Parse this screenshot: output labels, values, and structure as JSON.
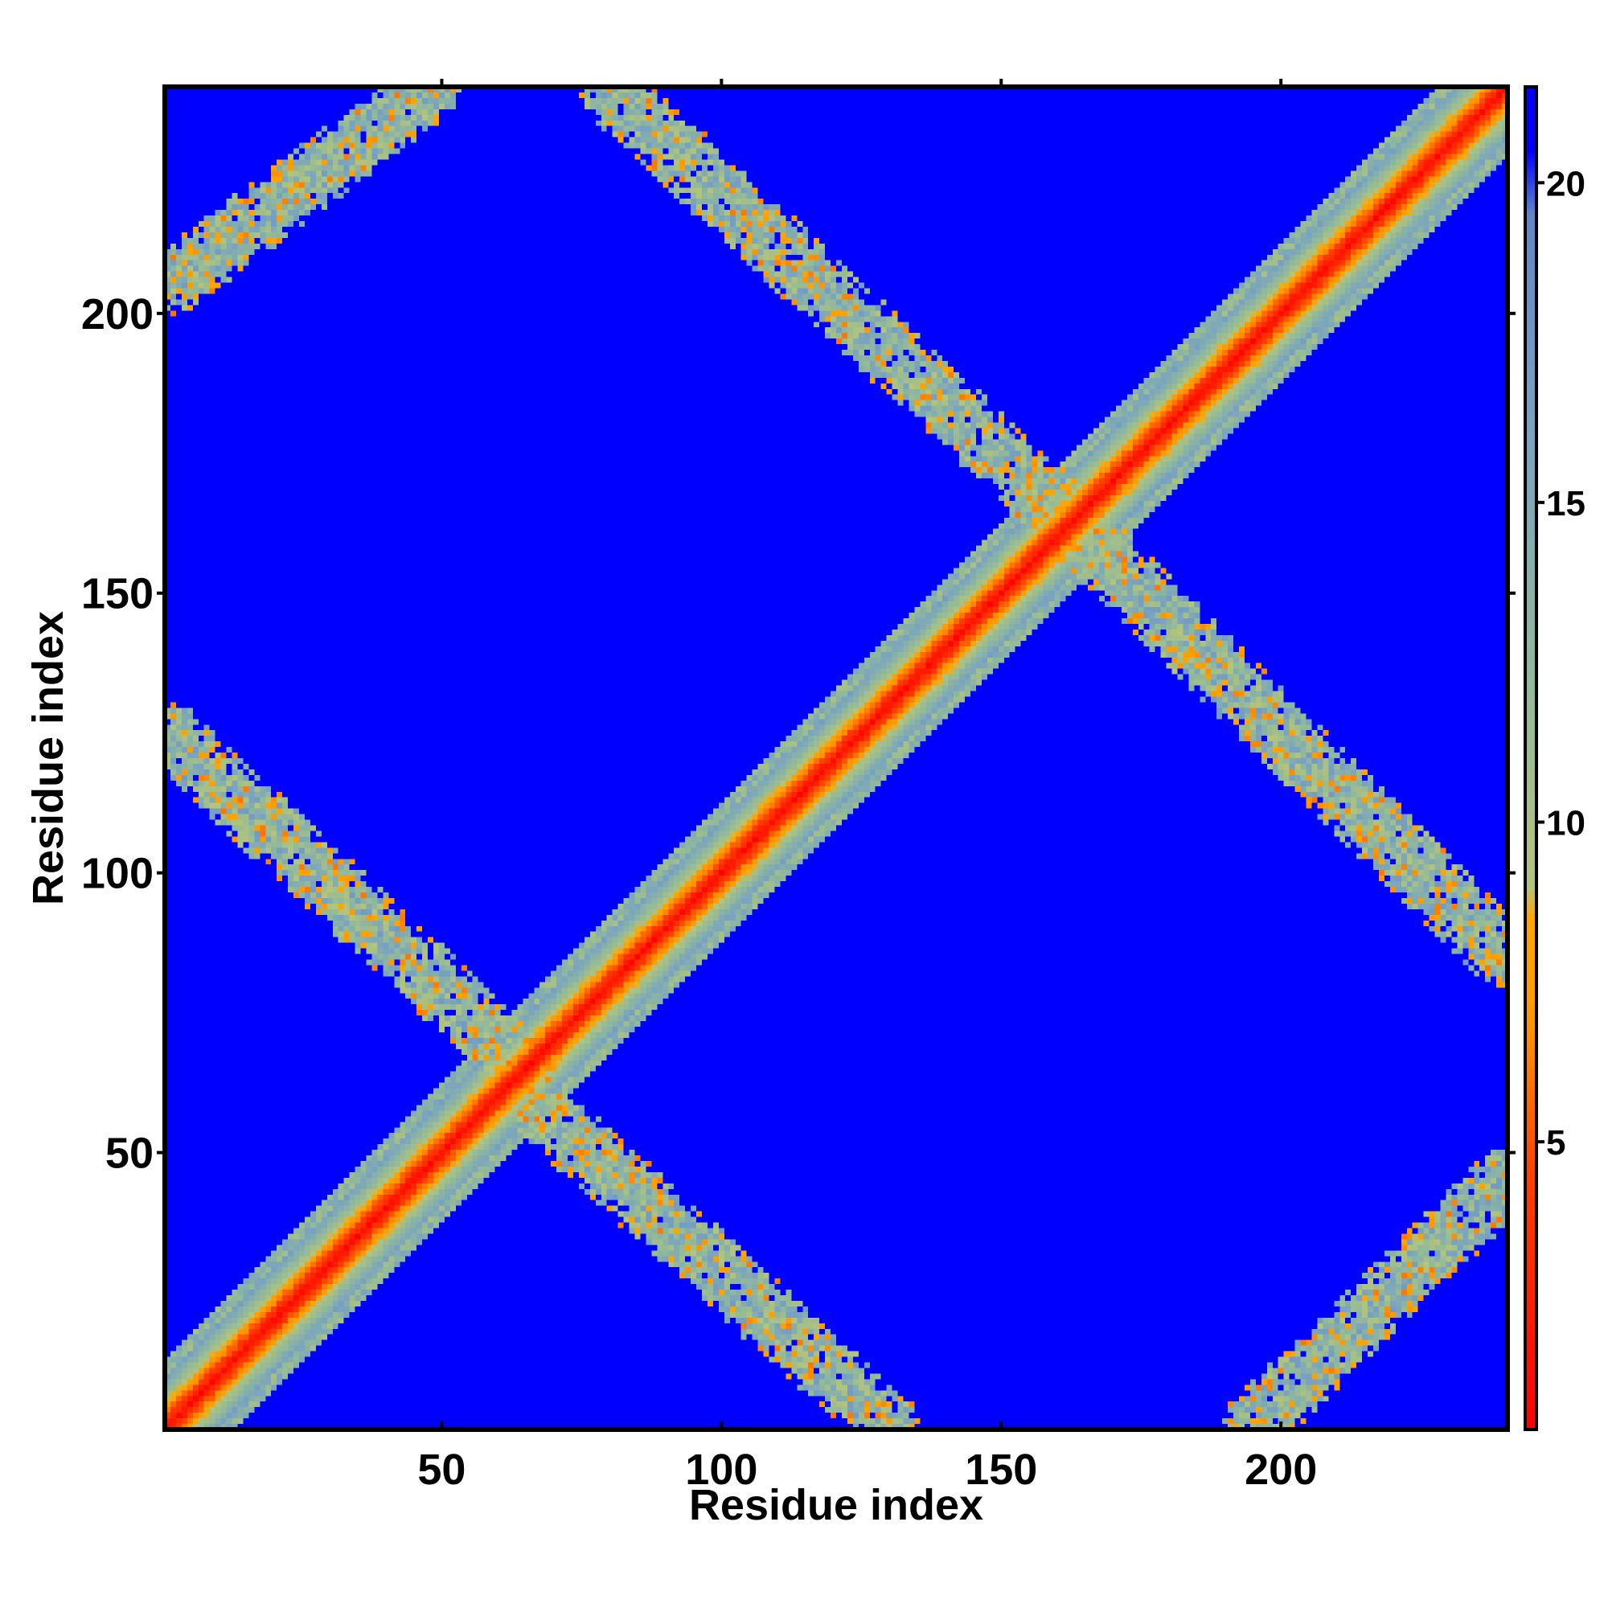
{
  "chart_data": {
    "type": "heatmap",
    "title": "",
    "xlabel": "Residue index",
    "ylabel": "Residue index",
    "xlim": [
      1,
      240
    ],
    "ylim": [
      1,
      240
    ],
    "x_ticks": [
      50,
      100,
      150,
      200
    ],
    "y_ticks": [
      50,
      100,
      150,
      200
    ],
    "x_tick_labels": [
      "50",
      "100",
      "150",
      "200"
    ],
    "y_tick_labels": [
      "50",
      "100",
      "150",
      "200"
    ],
    "grid": false,
    "colorbar": {
      "placement": "right",
      "range": [
        0.5,
        21.5
      ],
      "ticks": [
        5,
        10,
        15,
        20
      ],
      "tick_labels": [
        "5",
        "10",
        "15",
        "20"
      ],
      "stops": [
        {
          "value": 0.5,
          "color": "#ff0000"
        },
        {
          "value": 4.5,
          "color": "#ff4000"
        },
        {
          "value": 7.0,
          "color": "#ff9a00"
        },
        {
          "value": 8.5,
          "color": "#ffa500"
        },
        {
          "value": 9.0,
          "color": "#b4c47a"
        },
        {
          "value": 12.0,
          "color": "#93ba98"
        },
        {
          "value": 16.0,
          "color": "#7aa4c0"
        },
        {
          "value": 19.5,
          "color": "#5e87c8"
        },
        {
          "value": 20.5,
          "color": "#0000ff"
        },
        {
          "value": 21.5,
          "color": "#0000ff"
        }
      ]
    },
    "background_value": 21.5,
    "bands": [
      {
        "kind": "diagonal",
        "from": [
          1,
          1
        ],
        "to": [
          240,
          240
        ],
        "halfwidth": 8
      },
      {
        "kind": "anti-diagonal",
        "from": [
          1,
          125
        ],
        "to": [
          65,
          65
        ],
        "halfwidth": 5
      },
      {
        "kind": "anti-diagonal",
        "from": [
          62,
          63
        ],
        "to": [
          130,
          1
        ],
        "halfwidth": 5
      },
      {
        "kind": "anti-diagonal",
        "from": [
          80,
          240
        ],
        "to": [
          160,
          165
        ],
        "halfwidth": 5
      },
      {
        "kind": "anti-diagonal",
        "from": [
          160,
          165
        ],
        "to": [
          240,
          85
        ],
        "halfwidth": 5
      },
      {
        "kind": "parallel",
        "from": [
          1,
          205
        ],
        "to": [
          48,
          240
        ],
        "halfwidth": 5
      },
      {
        "kind": "parallel",
        "from": [
          195,
          1
        ],
        "to": [
          240,
          45
        ],
        "halfwidth": 5
      }
    ]
  }
}
